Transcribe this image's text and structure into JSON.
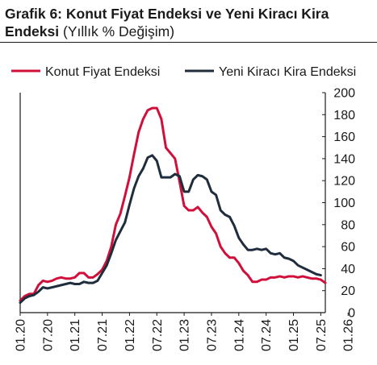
{
  "chart_data": {
    "type": "line",
    "title_bold": "Grafik 6: Konut Fiyat Endeksi ve Yeni Kiracı Kira Endeksi",
    "title_normal": "(Yıllık % Değişim)",
    "xlabel": "",
    "ylabel": "",
    "ylim": [
      0,
      200
    ],
    "yticks": [
      0,
      20,
      40,
      60,
      80,
      100,
      120,
      140,
      160,
      180,
      200
    ],
    "x_tick_labels": [
      "01.20",
      "07.20",
      "01.21",
      "07.21",
      "01.22",
      "07.22",
      "01.23",
      "07.23",
      "01.24",
      "07.24",
      "01.25",
      "07.25",
      "01.26"
    ],
    "grid": false,
    "legend_position": "top",
    "series": [
      {
        "name": "Konut Fiyat Endeksi",
        "color": "#d0103a",
        "values": [
          11,
          15,
          17,
          17,
          25,
          29,
          28,
          29,
          31,
          32,
          31,
          31,
          32,
          36,
          36,
          32,
          32,
          35,
          39,
          47,
          60,
          80,
          90,
          106,
          123,
          144,
          164,
          176,
          184,
          186,
          186,
          176,
          150,
          145,
          140,
          119,
          97,
          93,
          93,
          96,
          91,
          87,
          78,
          72,
          60,
          54,
          50,
          50,
          45,
          38,
          34,
          28,
          28,
          30,
          30,
          32,
          32,
          33,
          32,
          33,
          33,
          32,
          33,
          32,
          31,
          31,
          30,
          27
        ]
      },
      {
        "name": "Yeni Kiracı Kira Endeksi",
        "color": "#1f2d3d",
        "values": [
          9,
          13,
          15,
          16,
          19,
          23,
          22,
          23,
          24,
          25,
          26,
          27,
          26,
          26,
          28,
          27,
          27,
          29,
          36,
          43,
          54,
          66,
          74,
          82,
          98,
          113,
          124,
          131,
          141,
          143,
          138,
          123,
          123,
          123,
          126,
          124,
          110,
          110,
          121,
          125,
          124,
          121,
          110,
          107,
          93,
          89,
          87,
          79,
          68,
          62,
          57,
          57,
          58,
          57,
          58,
          54,
          53,
          54,
          50,
          49,
          47,
          43,
          41,
          39,
          37,
          35,
          34
        ]
      }
    ]
  }
}
